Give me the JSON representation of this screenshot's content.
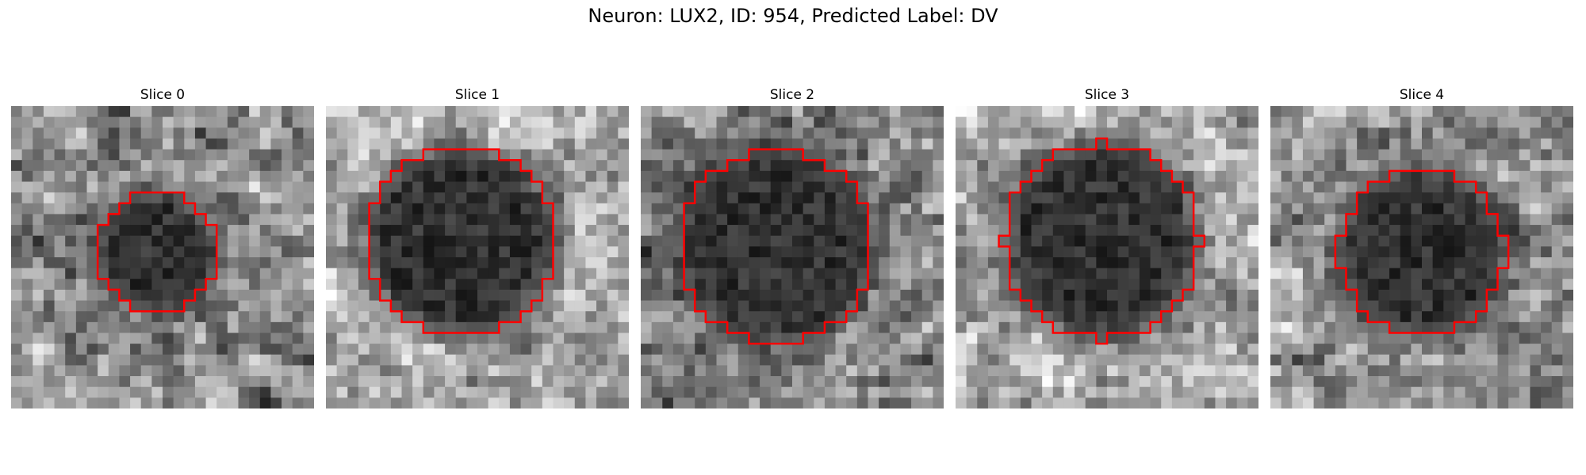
{
  "figure": {
    "suptitle": "Neuron: LUX2, ID: 954, Predicted Label: DV"
  },
  "panels": [
    {
      "title": "Slice 0",
      "center": [
        13.5,
        13.5
      ],
      "radius": 5.6,
      "sharpness": 1.4,
      "light_bias": 0.1
    },
    {
      "title": "Slice 1",
      "center": [
        12.5,
        12.5
      ],
      "radius": 8.8,
      "sharpness": 1.3,
      "light_bias": 0.22
    },
    {
      "title": "Slice 2",
      "center": [
        12.5,
        13.0
      ],
      "radius": 9.0,
      "sharpness": 1.3,
      "light_bias": 0.05
    },
    {
      "title": "Slice 3",
      "center": [
        13.5,
        12.5
      ],
      "radius": 9.0,
      "sharpness": 1.3,
      "light_bias": 0.2
    },
    {
      "title": "Slice 4",
      "center": [
        14.0,
        13.5
      ],
      "radius": 7.6,
      "sharpness": 1.4,
      "light_bias": 0.12
    }
  ],
  "grid_size": 28,
  "contour_color": "#ff0000",
  "colormap": "gray"
}
